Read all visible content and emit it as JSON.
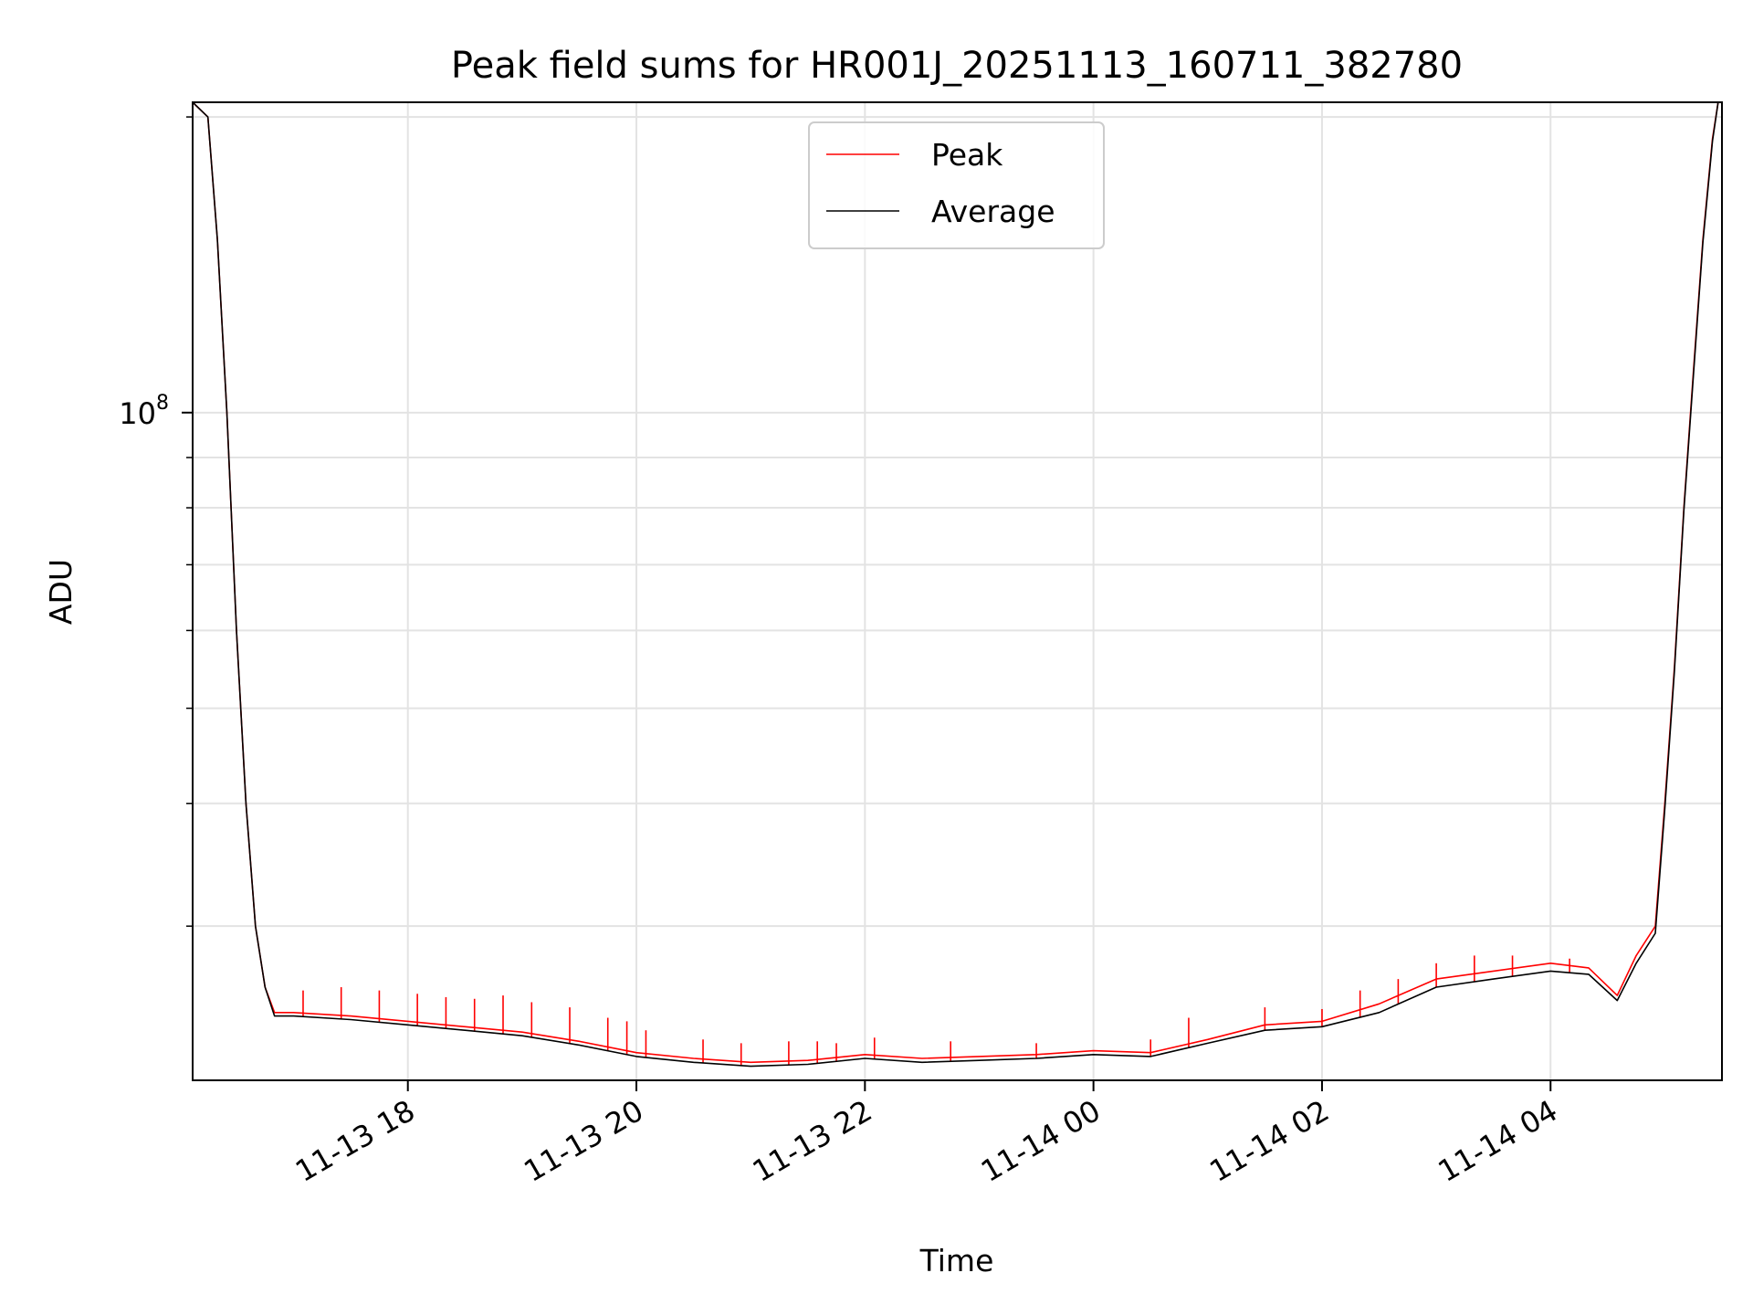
{
  "chart_data": {
    "type": "line",
    "title": "Peak field sums for HR001J_20251113_160711_382780",
    "xlabel": "Time",
    "ylabel": "ADU",
    "yscale": "log",
    "xlim": [
      "2025-11-13T16:07",
      "2025-11-14T05:30"
    ],
    "ylim": [
      20900000,
      207000000
    ],
    "x_ticks": [
      {
        "value": "2025-11-13T18:00",
        "label": "11-13 18"
      },
      {
        "value": "2025-11-13T20:00",
        "label": "11-13 20"
      },
      {
        "value": "2025-11-13T22:00",
        "label": "11-13 22"
      },
      {
        "value": "2025-11-14T00:00",
        "label": "11-14 00"
      },
      {
        "value": "2025-11-14T02:00",
        "label": "11-14 02"
      },
      {
        "value": "2025-11-14T04:00",
        "label": "11-14 04"
      }
    ],
    "y_major_ticks": [
      {
        "value": 100000000,
        "base": "10",
        "exp": "8"
      }
    ],
    "y_minor_ticks": [
      30000000,
      40000000,
      50000000,
      60000000,
      70000000,
      80000000,
      90000000,
      200000000
    ],
    "grid": true,
    "legend_position": "top-center",
    "series": [
      {
        "name": "Peak",
        "color": "#ff0000",
        "x": [
          "2025-11-13T16:07",
          "2025-11-13T16:15",
          "2025-11-13T16:20",
          "2025-11-13T16:25",
          "2025-11-13T16:30",
          "2025-11-13T16:35",
          "2025-11-13T16:40",
          "2025-11-13T16:45",
          "2025-11-13T16:50",
          "2025-11-13T17:00",
          "2025-11-13T17:30",
          "2025-11-13T18:00",
          "2025-11-13T18:30",
          "2025-11-13T19:00",
          "2025-11-13T19:30",
          "2025-11-13T20:00",
          "2025-11-13T20:30",
          "2025-11-13T21:00",
          "2025-11-13T21:30",
          "2025-11-13T22:00",
          "2025-11-13T22:30",
          "2025-11-13T23:00",
          "2025-11-13T23:30",
          "2025-11-14T00:00",
          "2025-11-14T00:30",
          "2025-11-14T01:00",
          "2025-11-14T01:30",
          "2025-11-14T02:00",
          "2025-11-14T02:30",
          "2025-11-14T03:00",
          "2025-11-14T03:30",
          "2025-11-14T04:00",
          "2025-11-14T04:20",
          "2025-11-14T04:35",
          "2025-11-14T04:45",
          "2025-11-14T04:55",
          "2025-11-14T05:00",
          "2025-11-14T05:05",
          "2025-11-14T05:10",
          "2025-11-14T05:15",
          "2025-11-14T05:20",
          "2025-11-14T05:25",
          "2025-11-14T05:28"
        ],
        "y": [
          207000000,
          200000000,
          150000000,
          100000000,
          60000000,
          40000000,
          30000000,
          26000000,
          24500000,
          24500000,
          24300000,
          24000000,
          23700000,
          23400000,
          22900000,
          22300000,
          22000000,
          21800000,
          21900000,
          22200000,
          22000000,
          22100000,
          22200000,
          22400000,
          22300000,
          23000000,
          23800000,
          24000000,
          25000000,
          26500000,
          27000000,
          27500000,
          27200000,
          25500000,
          28000000,
          30000000,
          40000000,
          55000000,
          80000000,
          110000000,
          150000000,
          190000000,
          207000000
        ],
        "spikes": [
          {
            "x": "2025-11-13T17:05",
            "y": 25800000
          },
          {
            "x": "2025-11-13T17:25",
            "y": 26000000
          },
          {
            "x": "2025-11-13T17:45",
            "y": 25800000
          },
          {
            "x": "2025-11-13T18:05",
            "y": 25600000
          },
          {
            "x": "2025-11-13T18:20",
            "y": 25400000
          },
          {
            "x": "2025-11-13T18:35",
            "y": 25300000
          },
          {
            "x": "2025-11-13T18:50",
            "y": 25500000
          },
          {
            "x": "2025-11-13T19:05",
            "y": 25100000
          },
          {
            "x": "2025-11-13T19:25",
            "y": 24800000
          },
          {
            "x": "2025-11-13T19:45",
            "y": 24200000
          },
          {
            "x": "2025-11-13T19:55",
            "y": 24000000
          },
          {
            "x": "2025-11-13T20:05",
            "y": 23500000
          },
          {
            "x": "2025-11-13T20:35",
            "y": 23000000
          },
          {
            "x": "2025-11-13T20:55",
            "y": 22800000
          },
          {
            "x": "2025-11-13T21:20",
            "y": 22900000
          },
          {
            "x": "2025-11-13T21:35",
            "y": 22900000
          },
          {
            "x": "2025-11-13T21:45",
            "y": 22800000
          },
          {
            "x": "2025-11-13T22:05",
            "y": 23100000
          },
          {
            "x": "2025-11-13T22:45",
            "y": 22900000
          },
          {
            "x": "2025-11-13T23:30",
            "y": 22800000
          },
          {
            "x": "2025-11-14T00:30",
            "y": 23000000
          },
          {
            "x": "2025-11-14T00:50",
            "y": 24200000
          },
          {
            "x": "2025-11-14T01:30",
            "y": 24800000
          },
          {
            "x": "2025-11-14T02:00",
            "y": 24700000
          },
          {
            "x": "2025-11-14T02:20",
            "y": 25800000
          },
          {
            "x": "2025-11-14T02:40",
            "y": 26500000
          },
          {
            "x": "2025-11-14T03:00",
            "y": 27500000
          },
          {
            "x": "2025-11-14T03:20",
            "y": 28000000
          },
          {
            "x": "2025-11-14T03:40",
            "y": 28000000
          },
          {
            "x": "2025-11-14T04:10",
            "y": 27800000
          }
        ]
      },
      {
        "name": "Average",
        "color": "#000000",
        "x": [
          "2025-11-13T16:07",
          "2025-11-13T16:15",
          "2025-11-13T16:20",
          "2025-11-13T16:25",
          "2025-11-13T16:30",
          "2025-11-13T16:35",
          "2025-11-13T16:40",
          "2025-11-13T16:45",
          "2025-11-13T16:50",
          "2025-11-13T17:00",
          "2025-11-13T17:30",
          "2025-11-13T18:00",
          "2025-11-13T18:30",
          "2025-11-13T19:00",
          "2025-11-13T19:30",
          "2025-11-13T20:00",
          "2025-11-13T20:30",
          "2025-11-13T21:00",
          "2025-11-13T21:30",
          "2025-11-13T22:00",
          "2025-11-13T22:30",
          "2025-11-13T23:00",
          "2025-11-13T23:30",
          "2025-11-14T00:00",
          "2025-11-14T00:30",
          "2025-11-14T01:00",
          "2025-11-14T01:30",
          "2025-11-14T02:00",
          "2025-11-14T02:30",
          "2025-11-14T03:00",
          "2025-11-14T03:30",
          "2025-11-14T04:00",
          "2025-11-14T04:20",
          "2025-11-14T04:35",
          "2025-11-14T04:45",
          "2025-11-14T04:55",
          "2025-11-14T05:00",
          "2025-11-14T05:05",
          "2025-11-14T05:10",
          "2025-11-14T05:15",
          "2025-11-14T05:20",
          "2025-11-14T05:25",
          "2025-11-14T05:28"
        ],
        "y": [
          207000000,
          200000000,
          150000000,
          100000000,
          60000000,
          40000000,
          30000000,
          26000000,
          24300000,
          24300000,
          24100000,
          23800000,
          23500000,
          23200000,
          22700000,
          22100000,
          21800000,
          21600000,
          21700000,
          22000000,
          21800000,
          21900000,
          22000000,
          22200000,
          22100000,
          22800000,
          23500000,
          23700000,
          24500000,
          26000000,
          26500000,
          27000000,
          26800000,
          25200000,
          27500000,
          29500000,
          39500000,
          54500000,
          79500000,
          109000000,
          149000000,
          189000000,
          207000000
        ]
      }
    ]
  }
}
